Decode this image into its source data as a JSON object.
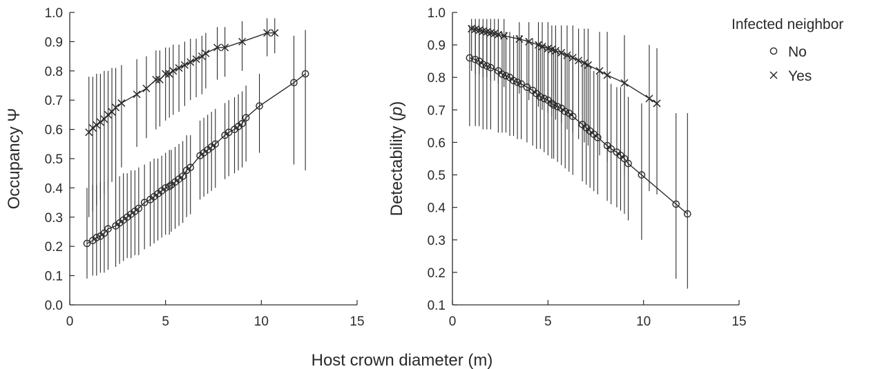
{
  "shared_xlabel": "Host crown diameter (m)",
  "legend": {
    "title": "Infected neighbor",
    "entries": [
      {
        "label": "No",
        "marker": "circle"
      },
      {
        "label": "Yes",
        "marker": "cross"
      }
    ]
  },
  "colors": {
    "ink": "#2a2a2a",
    "background": "#ffffff"
  },
  "chart_data": [
    {
      "type": "line",
      "title": "",
      "xlabel": "Host crown diameter (m)",
      "ylabel_prefix": "Occupancy ",
      "ylabel_italic": "",
      "ylabel_suffix": "Ψ",
      "xlim": [
        0,
        15
      ],
      "ylim": [
        0,
        1
      ],
      "xticks": [
        0,
        5,
        10,
        15
      ],
      "yticks": [
        "0.0",
        "0.1",
        "0.2",
        "0.3",
        "0.4",
        "0.5",
        "0.6",
        "0.7",
        "0.8",
        "0.9",
        "1.0"
      ],
      "grid": false,
      "error_bars": "vertical lines",
      "series": [
        {
          "name": "No",
          "marker": "circle",
          "x": [
            0.9,
            1.2,
            1.4,
            1.6,
            1.8,
            2.0,
            2.4,
            2.6,
            2.8,
            3.0,
            3.2,
            3.4,
            3.6,
            3.9,
            4.2,
            4.4,
            4.6,
            4.8,
            5.0,
            5.2,
            5.3,
            5.5,
            5.7,
            5.9,
            6.1,
            6.3,
            6.8,
            7.0,
            7.2,
            7.4,
            7.6,
            8.1,
            8.3,
            8.6,
            8.8,
            9.0,
            9.2,
            9.9,
            11.7,
            12.3
          ],
          "y": [
            0.21,
            0.22,
            0.23,
            0.235,
            0.245,
            0.26,
            0.27,
            0.28,
            0.29,
            0.3,
            0.31,
            0.32,
            0.33,
            0.35,
            0.36,
            0.37,
            0.38,
            0.39,
            0.4,
            0.405,
            0.41,
            0.42,
            0.43,
            0.44,
            0.46,
            0.47,
            0.51,
            0.52,
            0.53,
            0.54,
            0.55,
            0.58,
            0.59,
            0.6,
            0.61,
            0.62,
            0.64,
            0.68,
            0.76,
            0.79
          ],
          "lower": [
            0.09,
            0.1,
            0.1,
            0.11,
            0.11,
            0.12,
            0.13,
            0.14,
            0.15,
            0.16,
            0.16,
            0.17,
            0.17,
            0.19,
            0.2,
            0.21,
            0.22,
            0.23,
            0.24,
            0.24,
            0.25,
            0.26,
            0.27,
            0.28,
            0.3,
            0.31,
            0.36,
            0.37,
            0.38,
            0.39,
            0.4,
            0.43,
            0.44,
            0.45,
            0.46,
            0.47,
            0.49,
            0.52,
            0.48,
            0.46
          ],
          "upper": [
            0.4,
            0.41,
            0.41,
            0.42,
            0.42,
            0.43,
            0.44,
            0.44,
            0.45,
            0.45,
            0.46,
            0.46,
            0.47,
            0.48,
            0.49,
            0.5,
            0.5,
            0.51,
            0.52,
            0.53,
            0.53,
            0.54,
            0.55,
            0.56,
            0.58,
            0.58,
            0.63,
            0.64,
            0.65,
            0.66,
            0.67,
            0.69,
            0.7,
            0.71,
            0.72,
            0.73,
            0.75,
            0.79,
            0.92,
            0.94
          ]
        },
        {
          "name": "Yes",
          "marker": "cross",
          "x": [
            1.0,
            1.2,
            1.4,
            1.6,
            1.8,
            2.0,
            2.2,
            2.4,
            2.7,
            3.5,
            4.0,
            4.5,
            4.7,
            5.0,
            5.2,
            5.4,
            5.7,
            6.0,
            6.3,
            6.6,
            6.9,
            7.1,
            7.7,
            8.1,
            9.0,
            10.3,
            10.7
          ],
          "y": [
            0.59,
            0.605,
            0.615,
            0.625,
            0.635,
            0.65,
            0.66,
            0.675,
            0.69,
            0.72,
            0.74,
            0.77,
            0.77,
            0.79,
            0.79,
            0.8,
            0.81,
            0.82,
            0.83,
            0.84,
            0.85,
            0.86,
            0.88,
            0.88,
            0.9,
            0.93,
            0.93
          ],
          "lower": [
            0.3,
            0.32,
            0.34,
            0.36,
            0.38,
            0.4,
            0.42,
            0.44,
            0.47,
            0.54,
            0.57,
            0.6,
            0.61,
            0.63,
            0.64,
            0.65,
            0.66,
            0.68,
            0.7,
            0.71,
            0.72,
            0.74,
            0.77,
            0.78,
            0.8,
            0.85,
            0.86
          ],
          "upper": [
            0.78,
            0.78,
            0.79,
            0.79,
            0.8,
            0.8,
            0.81,
            0.81,
            0.82,
            0.84,
            0.85,
            0.87,
            0.87,
            0.88,
            0.88,
            0.89,
            0.89,
            0.9,
            0.91,
            0.91,
            0.92,
            0.93,
            0.95,
            0.95,
            0.97,
            0.98,
            0.98
          ]
        }
      ]
    },
    {
      "type": "line",
      "title": "",
      "xlabel": "Host crown diameter (m)",
      "ylabel_prefix": "Detectability (",
      "ylabel_italic": "p",
      "ylabel_suffix": ")",
      "xlim": [
        0,
        15
      ],
      "ylim": [
        0.1,
        1
      ],
      "xticks": [
        0,
        5,
        10,
        15
      ],
      "yticks": [
        "0.1",
        "0.2",
        "0.3",
        "0.4",
        "0.5",
        "0.6",
        "0.7",
        "0.8",
        "0.9",
        "1.0"
      ],
      "grid": false,
      "error_bars": "vertical lines",
      "series": [
        {
          "name": "No",
          "marker": "circle",
          "x": [
            0.9,
            1.2,
            1.4,
            1.6,
            1.8,
            2.0,
            2.4,
            2.6,
            2.8,
            3.0,
            3.2,
            3.4,
            3.6,
            3.9,
            4.2,
            4.4,
            4.6,
            4.8,
            5.0,
            5.2,
            5.3,
            5.5,
            5.7,
            5.9,
            6.1,
            6.3,
            6.8,
            7.0,
            7.2,
            7.4,
            7.6,
            8.1,
            8.3,
            8.6,
            8.8,
            9.0,
            9.2,
            9.9,
            11.7,
            12.3
          ],
          "y": [
            0.86,
            0.855,
            0.85,
            0.84,
            0.835,
            0.83,
            0.82,
            0.81,
            0.805,
            0.8,
            0.79,
            0.785,
            0.78,
            0.77,
            0.76,
            0.75,
            0.74,
            0.735,
            0.73,
            0.72,
            0.715,
            0.71,
            0.705,
            0.695,
            0.69,
            0.68,
            0.655,
            0.645,
            0.635,
            0.625,
            0.615,
            0.59,
            0.58,
            0.57,
            0.56,
            0.55,
            0.535,
            0.5,
            0.41,
            0.38
          ],
          "lower": [
            0.65,
            0.65,
            0.65,
            0.64,
            0.64,
            0.64,
            0.63,
            0.63,
            0.63,
            0.62,
            0.62,
            0.61,
            0.61,
            0.6,
            0.59,
            0.58,
            0.58,
            0.57,
            0.56,
            0.55,
            0.55,
            0.54,
            0.53,
            0.52,
            0.51,
            0.5,
            0.48,
            0.47,
            0.46,
            0.45,
            0.44,
            0.42,
            0.41,
            0.4,
            0.39,
            0.38,
            0.36,
            0.3,
            0.18,
            0.15
          ],
          "upper": [
            0.96,
            0.96,
            0.96,
            0.96,
            0.95,
            0.95,
            0.95,
            0.94,
            0.94,
            0.94,
            0.93,
            0.93,
            0.93,
            0.92,
            0.92,
            0.91,
            0.91,
            0.9,
            0.9,
            0.89,
            0.89,
            0.88,
            0.88,
            0.87,
            0.87,
            0.86,
            0.84,
            0.84,
            0.83,
            0.82,
            0.81,
            0.79,
            0.78,
            0.77,
            0.77,
            0.76,
            0.74,
            0.72,
            0.69,
            0.69
          ]
        },
        {
          "name": "Yes",
          "marker": "cross",
          "x": [
            1.0,
            1.2,
            1.4,
            1.6,
            1.8,
            2.0,
            2.2,
            2.4,
            2.7,
            3.5,
            4.0,
            4.5,
            4.7,
            5.0,
            5.2,
            5.4,
            5.7,
            6.0,
            6.3,
            6.6,
            6.9,
            7.1,
            7.7,
            8.1,
            9.0,
            10.3,
            10.7
          ],
          "y": [
            0.95,
            0.948,
            0.945,
            0.942,
            0.94,
            0.937,
            0.935,
            0.932,
            0.928,
            0.918,
            0.91,
            0.9,
            0.895,
            0.889,
            0.886,
            0.882,
            0.876,
            0.868,
            0.861,
            0.852,
            0.844,
            0.838,
            0.82,
            0.807,
            0.783,
            0.735,
            0.72
          ],
          "lower": [
            0.82,
            0.81,
            0.81,
            0.8,
            0.8,
            0.79,
            0.79,
            0.78,
            0.77,
            0.75,
            0.73,
            0.71,
            0.7,
            0.69,
            0.68,
            0.67,
            0.66,
            0.64,
            0.63,
            0.61,
            0.6,
            0.59,
            0.56,
            0.54,
            0.5,
            0.45,
            0.44
          ],
          "upper": [
            0.98,
            0.98,
            0.98,
            0.98,
            0.98,
            0.98,
            0.98,
            0.98,
            0.98,
            0.97,
            0.97,
            0.97,
            0.97,
            0.97,
            0.96,
            0.96,
            0.96,
            0.96,
            0.96,
            0.95,
            0.95,
            0.95,
            0.94,
            0.94,
            0.93,
            0.9,
            0.89
          ]
        }
      ]
    }
  ]
}
